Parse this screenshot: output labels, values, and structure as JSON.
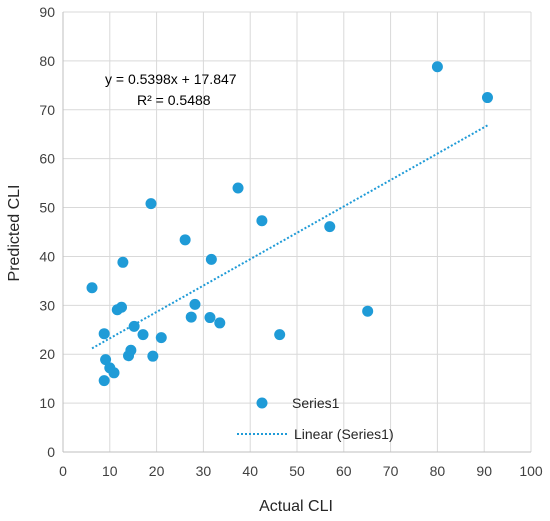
{
  "chart_data": {
    "type": "scatter",
    "xlabel": "Actual CLI",
    "ylabel": "Predicted CLI",
    "xlim": [
      0,
      100
    ],
    "ylim": [
      0,
      90
    ],
    "x_ticks": [
      0,
      10,
      20,
      30,
      40,
      50,
      60,
      70,
      80,
      90,
      100
    ],
    "y_ticks": [
      0,
      10,
      20,
      30,
      40,
      50,
      60,
      70,
      80,
      90
    ],
    "grid": "both",
    "series": [
      {
        "name": "Series1",
        "color": "#1f9bd7",
        "points": [
          {
            "x": 6.2,
            "y": 33.6
          },
          {
            "x": 8.8,
            "y": 24.2
          },
          {
            "x": 8.8,
            "y": 14.6
          },
          {
            "x": 9.1,
            "y": 18.9
          },
          {
            "x": 10.0,
            "y": 17.2
          },
          {
            "x": 10.9,
            "y": 16.2
          },
          {
            "x": 11.6,
            "y": 29.1
          },
          {
            "x": 12.5,
            "y": 29.6
          },
          {
            "x": 12.8,
            "y": 38.8
          },
          {
            "x": 14.0,
            "y": 19.7
          },
          {
            "x": 14.5,
            "y": 20.8
          },
          {
            "x": 15.2,
            "y": 25.7
          },
          {
            "x": 17.1,
            "y": 24.0
          },
          {
            "x": 18.8,
            "y": 50.8
          },
          {
            "x": 19.2,
            "y": 19.6
          },
          {
            "x": 21.0,
            "y": 23.4
          },
          {
            "x": 26.1,
            "y": 43.4
          },
          {
            "x": 27.4,
            "y": 27.6
          },
          {
            "x": 28.2,
            "y": 30.2
          },
          {
            "x": 31.4,
            "y": 27.5
          },
          {
            "x": 31.7,
            "y": 39.4
          },
          {
            "x": 33.5,
            "y": 26.4
          },
          {
            "x": 37.4,
            "y": 54.0
          },
          {
            "x": 42.5,
            "y": 47.3
          },
          {
            "x": 46.3,
            "y": 24.0
          },
          {
            "x": 57.0,
            "y": 46.1
          },
          {
            "x": 65.1,
            "y": 28.8
          },
          {
            "x": 80.0,
            "y": 78.8
          },
          {
            "x": 90.7,
            "y": 72.5
          }
        ]
      }
    ],
    "trendline": {
      "name": "Linear (Series1)",
      "slope": 0.5398,
      "intercept": 17.847,
      "x_range": [
        6.2,
        90.7
      ],
      "equation": "y = 0.5398x + 17.847",
      "r2": "R² = 0.5488",
      "color": "#1f9bd7"
    },
    "legend": {
      "placement": "lower-middle inside plot",
      "entries": [
        "Series1",
        "Linear (Series1)"
      ]
    }
  }
}
